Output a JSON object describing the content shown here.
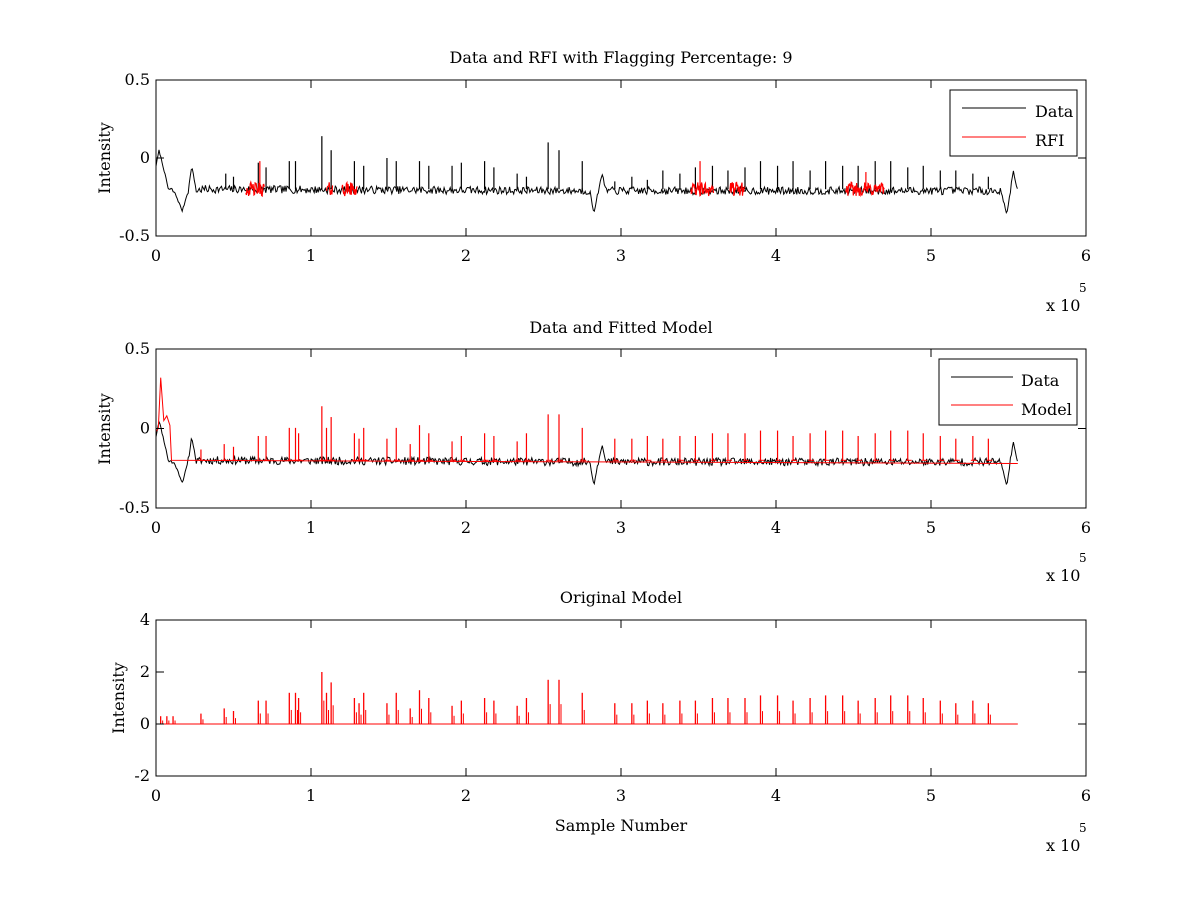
{
  "colors": {
    "data": "#000000",
    "rfi": "#ff0000",
    "axes": "#000000",
    "background": "#ffffff"
  },
  "chart_data": [
    {
      "type": "line",
      "title": "Data and RFI with Flagging Percentage: 9",
      "xlabel": "",
      "ylabel": "Intensity",
      "xlim": [
        0,
        600000
      ],
      "ylim": [
        -0.5,
        0.5
      ],
      "xticks": [
        "0",
        "1",
        "2",
        "3",
        "4",
        "5",
        "6"
      ],
      "yticks": [
        "-0.5",
        "0",
        "0.5"
      ],
      "x_multiplier": {
        "base": "x 10",
        "exponent": "5"
      },
      "legend_position": "top-right",
      "series": [
        {
          "name": "Data",
          "color": "#000000",
          "baseline": -0.2,
          "x": [
            0,
            2000,
            4000,
            8000,
            12000,
            17000,
            21000,
            23000,
            26000,
            30000,
            280000,
            282500,
            285000,
            288000,
            290000,
            545000,
            549000,
            553000,
            556000
          ],
          "y": [
            -0.05,
            0.05,
            -0.03,
            -0.2,
            -0.22,
            -0.34,
            -0.2,
            -0.05,
            -0.21,
            -0.2,
            -0.21,
            -0.36,
            -0.22,
            -0.1,
            -0.21,
            -0.21,
            -0.36,
            -0.08,
            -0.22
          ],
          "spikes_x": [
            45000,
            50000,
            66000,
            71000,
            86000,
            90000,
            107000,
            113000,
            128000,
            134000,
            149000,
            155000,
            170000,
            176000,
            191000,
            197000,
            212000,
            218000,
            233000,
            239000,
            253000,
            260000,
            275000,
            296000,
            307000,
            317000,
            327000,
            338000,
            348000,
            359000,
            369000,
            380000,
            390000,
            401000,
            411000,
            422000,
            432000,
            443000,
            453000,
            464000,
            474000,
            485000,
            495000,
            506000,
            516000,
            527000,
            537000
          ],
          "spikes_y": [
            -0.1,
            -0.12,
            -0.03,
            -0.06,
            -0.02,
            -0.02,
            0.14,
            0.05,
            -0.02,
            -0.05,
            0.0,
            -0.02,
            -0.02,
            -0.05,
            -0.05,
            -0.03,
            -0.02,
            -0.06,
            -0.1,
            -0.12,
            0.1,
            0.05,
            -0.02,
            -0.15,
            -0.12,
            -0.14,
            -0.08,
            -0.1,
            -0.06,
            -0.05,
            -0.08,
            -0.06,
            -0.02,
            -0.05,
            -0.02,
            -0.08,
            -0.02,
            -0.05,
            -0.05,
            -0.02,
            -0.02,
            -0.06,
            -0.05,
            -0.08,
            -0.08,
            -0.1,
            -0.12
          ]
        },
        {
          "name": "RFI",
          "color": "#ff0000",
          "segments": [
            [
              58000,
              70000
            ],
            [
              110000,
              114000
            ],
            [
              120000,
              130000
            ],
            [
              345000,
              360000
            ],
            [
              370000,
              380000
            ],
            [
              445000,
              470000
            ]
          ],
          "extra_spikes": [
            [
              67000,
              -0.02
            ],
            [
              351000,
              -0.02
            ],
            [
              458000,
              -0.09
            ]
          ]
        }
      ]
    },
    {
      "type": "line",
      "title": "Data and Fitted Model",
      "xlabel": "",
      "ylabel": "Intensity",
      "xlim": [
        0,
        600000
      ],
      "ylim": [
        -0.5,
        0.5
      ],
      "xticks": [
        "0",
        "1",
        "2",
        "3",
        "4",
        "5",
        "6"
      ],
      "yticks": [
        "-0.5",
        "0",
        "0.5"
      ],
      "x_multiplier": {
        "base": "x 10",
        "exponent": "5"
      },
      "legend_position": "top-right",
      "series": [
        {
          "name": "Data",
          "color": "#000000",
          "baseline": -0.2,
          "x": [
            0,
            2000,
            4000,
            8000,
            12000,
            17000,
            21000,
            23000,
            26000,
            30000,
            280000,
            282500,
            285000,
            288000,
            290000,
            545000,
            549000,
            553000,
            556000
          ],
          "y": [
            -0.05,
            0.05,
            -0.03,
            -0.2,
            -0.22,
            -0.34,
            -0.2,
            -0.05,
            -0.21,
            -0.2,
            -0.21,
            -0.36,
            -0.22,
            -0.1,
            -0.21,
            -0.21,
            -0.36,
            -0.08,
            -0.22
          ]
        },
        {
          "name": "Model",
          "color": "#ff0000",
          "baseline": -0.2,
          "x": [
            0,
            1500,
            3000,
            5000,
            7000,
            9000,
            10000,
            556000
          ],
          "y": [
            -0.02,
            0.0,
            0.32,
            0.05,
            0.08,
            0.02,
            -0.2,
            -0.22
          ]
        }
      ]
    },
    {
      "type": "line",
      "title": "Original Model",
      "xlabel": "Sample Number",
      "ylabel": "Intensity",
      "xlim": [
        0,
        600000
      ],
      "ylim": [
        -2,
        4
      ],
      "xticks": [
        "0",
        "1",
        "2",
        "3",
        "4",
        "5",
        "6"
      ],
      "yticks": [
        "-2",
        "0",
        "2",
        "4"
      ],
      "x_multiplier": {
        "base": "x 10",
        "exponent": "5"
      },
      "series": [
        {
          "name": "Model",
          "color": "#ff0000",
          "baseline": 0,
          "x_end": 556000,
          "spikes_x": [
            3000,
            7000,
            11000,
            29000,
            44000,
            50000,
            66000,
            71000,
            86000,
            90000,
            92000,
            107000,
            110000,
            113000,
            128000,
            131000,
            134000,
            149000,
            155000,
            164000,
            170000,
            176000,
            191000,
            197000,
            212000,
            218000,
            233000,
            239000,
            253000,
            260000,
            275000,
            296000,
            307000,
            317000,
            327000,
            338000,
            348000,
            359000,
            369000,
            380000,
            390000,
            401000,
            411000,
            422000,
            432000,
            443000,
            453000,
            464000,
            474000,
            485000,
            495000,
            506000,
            516000,
            527000,
            537000
          ],
          "spikes_y": [
            0.3,
            0.3,
            0.3,
            0.4,
            0.6,
            0.5,
            0.9,
            0.9,
            1.2,
            1.2,
            1.0,
            2.0,
            1.2,
            1.6,
            1.0,
            0.8,
            1.2,
            0.8,
            1.2,
            0.6,
            1.3,
            1.0,
            0.7,
            0.9,
            1.0,
            0.9,
            0.7,
            1.0,
            1.7,
            1.7,
            1.2,
            0.8,
            0.8,
            0.9,
            0.8,
            0.9,
            0.9,
            1.0,
            1.0,
            1.0,
            1.1,
            1.1,
            0.9,
            1.0,
            1.1,
            1.1,
            0.9,
            1.0,
            1.1,
            1.1,
            1.0,
            0.9,
            0.8,
            0.9,
            0.8
          ]
        }
      ]
    }
  ]
}
